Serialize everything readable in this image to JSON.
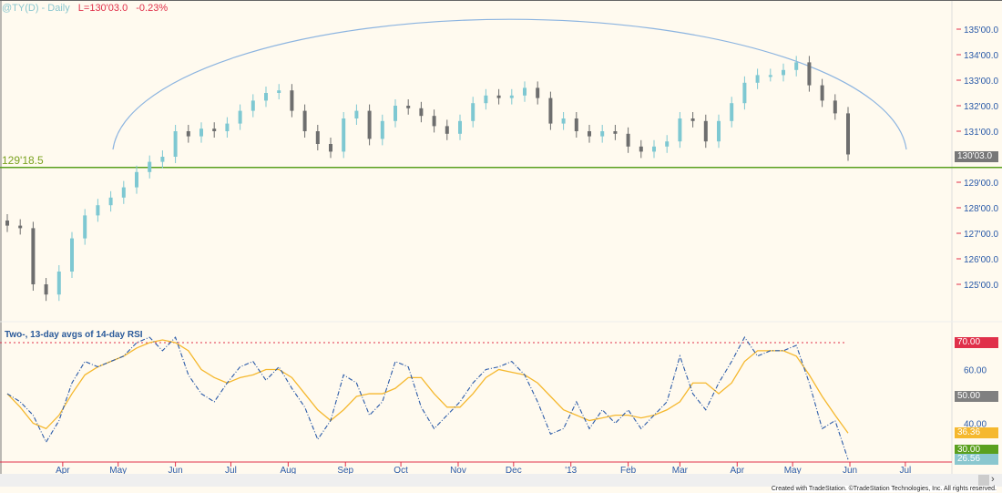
{
  "header": {
    "symbol": "@TY(D) - Daily",
    "last": "L=130'03.0",
    "change": "-0.23%"
  },
  "indicator_title": "Two-, 13-day avgs of 14-day RSI",
  "support_label": "129'18.5",
  "footer": "Created with TradeStation. ©TradeStation Technologies, Inc. All rights reserved.",
  "colors": {
    "up_bar": "#7ec8d2",
    "down_bar": "#6e6e6e",
    "arc": "#8cb4e0",
    "support": "#5aa01e",
    "rsi_fast": "#2a5aa8",
    "rsi_avg": "#f5b82e",
    "overbought": "#e0304a"
  },
  "chart_data": [
    {
      "type": "bar",
      "title": "@TY(D) - Daily",
      "ylim": [
        124,
        135.5
      ],
      "y_ticks": [
        "135'00.0",
        "134'00.0",
        "133'00.0",
        "132'00.0",
        "131'00.0",
        "129'00.0",
        "128'00.0",
        "127'00.0",
        "126'00.0",
        "125'00.0"
      ],
      "y_tick_values": [
        135,
        134,
        133,
        132,
        131,
        129,
        128,
        127,
        126,
        125
      ],
      "last_price_tag": "130'03.0",
      "support_level": 129.58,
      "start_date": "2012-03-02",
      "frequency_days": 7,
      "close": [
        127.3,
        127.2,
        125.0,
        124.6,
        125.5,
        126.8,
        127.7,
        128.1,
        128.4,
        128.8,
        129.4,
        129.8,
        130.0,
        131.0,
        130.8,
        131.1,
        131.0,
        131.3,
        131.8,
        132.2,
        132.5,
        132.6,
        131.8,
        131.0,
        130.5,
        130.2,
        131.5,
        131.8,
        130.7,
        131.4,
        132.0,
        131.9,
        131.6,
        131.2,
        130.9,
        131.4,
        132.1,
        132.4,
        132.3,
        132.4,
        132.7,
        132.3,
        131.3,
        131.5,
        131.0,
        130.8,
        131.0,
        130.9,
        130.4,
        130.2,
        130.4,
        130.6,
        131.5,
        131.4,
        130.6,
        131.4,
        132.1,
        132.9,
        133.2,
        133.2,
        133.4,
        133.7,
        132.8,
        132.2,
        131.7,
        130.09
      ]
    },
    {
      "type": "line",
      "title": "Two-, 13-day avgs of 14-day RSI",
      "ylim": [
        25,
        80
      ],
      "y_ticks": [
        "60.00",
        "40.00"
      ],
      "y_tick_values": [
        60,
        40
      ],
      "overbought": 70,
      "tags": [
        {
          "label": "70.00",
          "color": "#e0304a",
          "value": 70
        },
        {
          "label": "50.00",
          "color": "#808080",
          "value": 50
        },
        {
          "label": "36.36",
          "color": "#f5b82e",
          "value": 36.36
        },
        {
          "label": "30.00",
          "color": "#5aa01e",
          "value": 30
        },
        {
          "label": "26.56",
          "color": "#8ac7cf",
          "value": 26.56
        }
      ],
      "series": [
        {
          "values": [
            51,
            48,
            43,
            33,
            41,
            55,
            63,
            61,
            63,
            65,
            70,
            72,
            67,
            72,
            58,
            51,
            48,
            55,
            61,
            63,
            56,
            61,
            53,
            46,
            34,
            41,
            58,
            55,
            43,
            48,
            63,
            61,
            46,
            38,
            43,
            48,
            55,
            60,
            61,
            63,
            58,
            48,
            36,
            38,
            48,
            38,
            45,
            40,
            45,
            38,
            43,
            48,
            65,
            51,
            45,
            55,
            63,
            72,
            65,
            67,
            67,
            69,
            55,
            38,
            41,
            26.56
          ]
        },
        {
          "values": [
            51,
            46,
            40,
            38,
            43,
            51,
            58,
            61,
            63,
            65,
            68,
            70,
            71,
            70,
            67,
            60,
            57,
            55,
            57,
            58,
            60,
            60,
            57,
            51,
            45,
            41,
            45,
            50,
            51,
            51,
            53,
            57,
            57,
            51,
            46,
            46,
            51,
            57,
            60,
            59,
            58,
            55,
            50,
            45,
            43,
            41,
            42,
            43,
            43,
            42,
            43,
            45,
            48,
            55,
            55,
            51,
            55,
            63,
            67,
            67,
            67,
            65,
            58,
            50,
            43,
            36.36
          ]
        }
      ]
    }
  ],
  "x_axis": {
    "months": [
      {
        "label": "Apr",
        "date": "2012-04-01"
      },
      {
        "label": "May",
        "date": "2012-05-01"
      },
      {
        "label": "Jun",
        "date": "2012-06-01"
      },
      {
        "label": "Jul",
        "date": "2012-07-01"
      },
      {
        "label": "Aug",
        "date": "2012-08-01"
      },
      {
        "label": "Sep",
        "date": "2012-09-01"
      },
      {
        "label": "Oct",
        "date": "2012-10-01"
      },
      {
        "label": "Nov",
        "date": "2012-11-01"
      },
      {
        "label": "Dec",
        "date": "2012-12-01"
      },
      {
        "label": "'13",
        "date": "2013-01-01"
      },
      {
        "label": "Feb",
        "date": "2013-02-01"
      },
      {
        "label": "Mar",
        "date": "2013-03-01"
      },
      {
        "label": "Apr",
        "date": "2013-04-01"
      },
      {
        "label": "May",
        "date": "2013-05-01"
      },
      {
        "label": "Jun",
        "date": "2013-06-01"
      },
      {
        "label": "Jul",
        "date": "2013-07-01"
      }
    ]
  }
}
